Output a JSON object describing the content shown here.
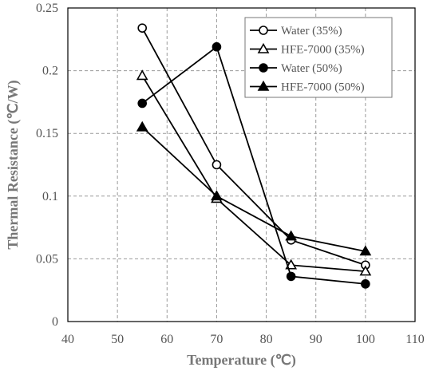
{
  "chart_data": {
    "type": "line",
    "xlabel": "Temperature (℃)",
    "ylabel": "Thermal Resistance (℃/W)",
    "xlim": [
      40,
      110
    ],
    "ylim": [
      0,
      0.25
    ],
    "xticks": [
      "40",
      "50",
      "60",
      "70",
      "80",
      "90",
      "100",
      "110"
    ],
    "yticks": [
      "0",
      "0.05",
      "0.1",
      "0.15",
      "0.2",
      "0.25"
    ],
    "grid": true,
    "legend_position": "top-right",
    "x": [
      55,
      70,
      85,
      100
    ],
    "series": [
      {
        "name": "Water (35%)",
        "marker": "circle-open",
        "values": [
          0.234,
          0.125,
          0.065,
          0.045
        ]
      },
      {
        "name": "HFE-7000 (35%)",
        "marker": "triangle-open",
        "values": [
          0.196,
          0.098,
          0.045,
          0.04
        ]
      },
      {
        "name": "Water (50%)",
        "marker": "circle-filled",
        "values": [
          0.174,
          0.219,
          0.036,
          0.03
        ]
      },
      {
        "name": "HFE-7000 (50%)",
        "marker": "triangle-filled",
        "values": [
          0.155,
          0.1,
          0.068,
          0.056
        ]
      }
    ]
  }
}
